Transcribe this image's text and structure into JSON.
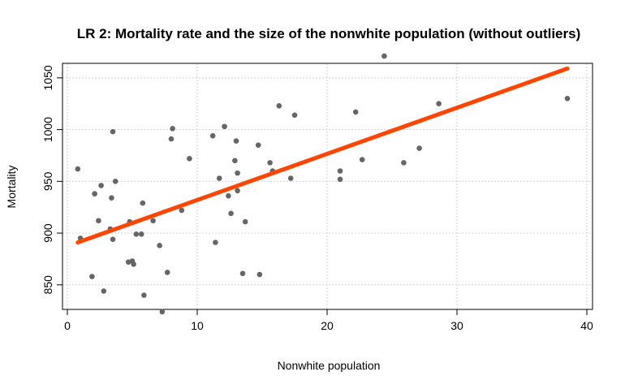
{
  "chart_data": {
    "type": "scatter",
    "title": "LR 2: Mortality rate and the size of the nonwhite population (without outliers)",
    "xlabel": "Nonwhite population",
    "ylabel": "Mortality",
    "xlim": [
      0,
      40
    ],
    "ylim": [
      820,
      1075
    ],
    "xticks": [
      0,
      10,
      20,
      30,
      40
    ],
    "yticks": [
      850,
      900,
      950,
      1000,
      1050
    ],
    "grid": true,
    "point_color": "#666666",
    "line_color": "#ff4500",
    "points": [
      {
        "x": 0.8,
        "y": 962
      },
      {
        "x": 1.0,
        "y": 895
      },
      {
        "x": 1.9,
        "y": 858
      },
      {
        "x": 2.1,
        "y": 938
      },
      {
        "x": 2.4,
        "y": 912
      },
      {
        "x": 2.6,
        "y": 946
      },
      {
        "x": 2.8,
        "y": 844
      },
      {
        "x": 3.3,
        "y": 904
      },
      {
        "x": 3.4,
        "y": 934
      },
      {
        "x": 3.5,
        "y": 894
      },
      {
        "x": 3.5,
        "y": 998
      },
      {
        "x": 3.7,
        "y": 950
      },
      {
        "x": 4.7,
        "y": 872
      },
      {
        "x": 4.8,
        "y": 911
      },
      {
        "x": 5.0,
        "y": 873
      },
      {
        "x": 5.1,
        "y": 870
      },
      {
        "x": 5.3,
        "y": 899
      },
      {
        "x": 5.7,
        "y": 899
      },
      {
        "x": 5.8,
        "y": 929
      },
      {
        "x": 5.9,
        "y": 840
      },
      {
        "x": 6.6,
        "y": 912
      },
      {
        "x": 7.1,
        "y": 888
      },
      {
        "x": 7.3,
        "y": 824
      },
      {
        "x": 7.7,
        "y": 862
      },
      {
        "x": 8.0,
        "y": 991
      },
      {
        "x": 8.1,
        "y": 1001
      },
      {
        "x": 8.8,
        "y": 922
      },
      {
        "x": 9.4,
        "y": 972
      },
      {
        "x": 11.2,
        "y": 994
      },
      {
        "x": 11.4,
        "y": 891
      },
      {
        "x": 11.7,
        "y": 953
      },
      {
        "x": 12.1,
        "y": 1003
      },
      {
        "x": 12.4,
        "y": 936
      },
      {
        "x": 12.6,
        "y": 919
      },
      {
        "x": 12.9,
        "y": 970
      },
      {
        "x": 13.0,
        "y": 989
      },
      {
        "x": 13.1,
        "y": 958
      },
      {
        "x": 13.1,
        "y": 941
      },
      {
        "x": 13.5,
        "y": 861
      },
      {
        "x": 13.7,
        "y": 911
      },
      {
        "x": 14.7,
        "y": 985
      },
      {
        "x": 14.8,
        "y": 860
      },
      {
        "x": 15.6,
        "y": 968
      },
      {
        "x": 15.8,
        "y": 960
      },
      {
        "x": 16.3,
        "y": 1023
      },
      {
        "x": 17.2,
        "y": 953
      },
      {
        "x": 17.5,
        "y": 1014
      },
      {
        "x": 21.0,
        "y": 960
      },
      {
        "x": 21.0,
        "y": 952
      },
      {
        "x": 22.2,
        "y": 1017
      },
      {
        "x": 22.7,
        "y": 971
      },
      {
        "x": 24.4,
        "y": 1071
      },
      {
        "x": 25.9,
        "y": 968
      },
      {
        "x": 27.1,
        "y": 982
      },
      {
        "x": 28.6,
        "y": 1025
      },
      {
        "x": 38.5,
        "y": 1030
      }
    ],
    "fit_line": {
      "x": [
        0.8,
        38.5
      ],
      "y": [
        891,
        1059
      ]
    }
  }
}
